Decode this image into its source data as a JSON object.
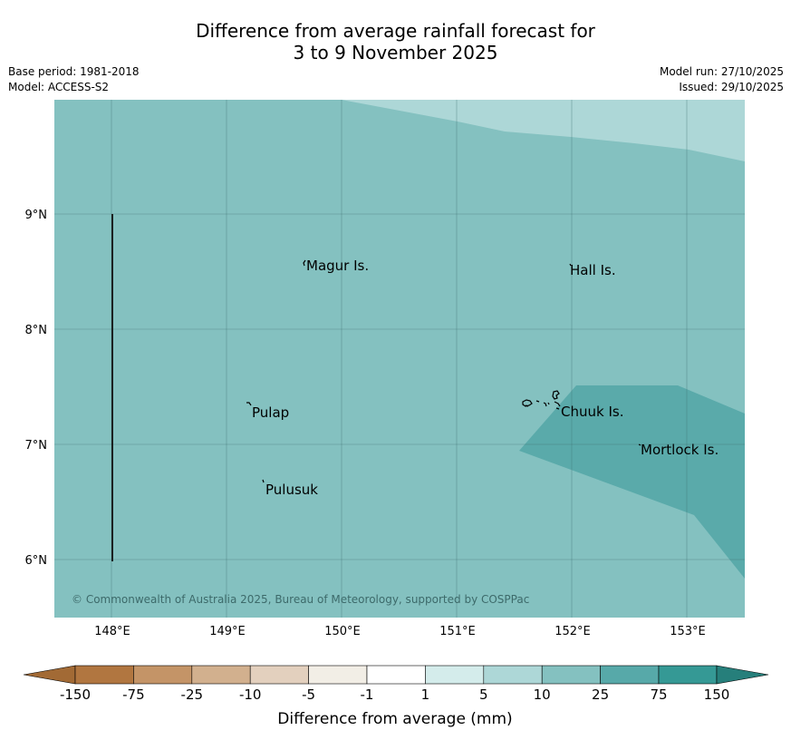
{
  "title_line1": "Difference from average rainfall forecast for",
  "title_line2": "3 to 9 November 2025",
  "base_period": "Base period: 1981-2018",
  "model": "Model: ACCESS-S2",
  "model_run": "Model run: 27/10/2025",
  "issued": "Issued: 29/10/2025",
  "lat_labels": [
    "9°N",
    "8°N",
    "7°N",
    "6°N"
  ],
  "lon_labels": [
    "148°E",
    "149°E",
    "150°E",
    "151°E",
    "152°E",
    "153°E"
  ],
  "places": [
    {
      "name": "Magur Is.",
      "lon": 149.69,
      "lat": 8.57
    },
    {
      "name": "Hall Is.",
      "lon": 152.0,
      "lat": 8.53
    },
    {
      "name": "Pulap",
      "lon": 149.2,
      "lat": 7.3
    },
    {
      "name": "Chuuk Is.",
      "lon": 151.88,
      "lat": 7.31
    },
    {
      "name": "Mortlock Is.",
      "lon": 152.6,
      "lat": 6.98
    },
    {
      "name": "Pulusuk",
      "lon": 149.31,
      "lat": 6.63
    }
  ],
  "copyright": "© Commonwealth of Australia 2025, Bureau of Meteorology, supported by COSPPac",
  "colorbar": {
    "title": "Difference from average (mm)",
    "ticks": [
      "-150",
      "-75",
      "-25",
      "-10",
      "-5",
      "-1",
      "1",
      "5",
      "10",
      "25",
      "75",
      "150"
    ],
    "colors": [
      "#a26a35",
      "#b17640",
      "#c49467",
      "#d2b08e",
      "#e3d0be",
      "#f2eee6",
      "#ffffff",
      "#d4eceb",
      "#add7d7",
      "#84c1c0",
      "#57a9a9",
      "#359995",
      "#267f7b"
    ]
  },
  "legend_colors": {
    "band_5_10": "#add7d7",
    "band_10_25": "#84c1c0",
    "band_25_75": "#57a9a9"
  }
}
